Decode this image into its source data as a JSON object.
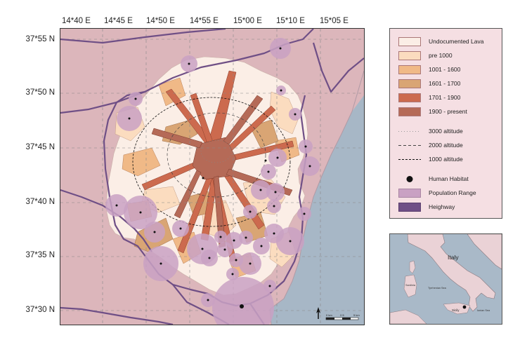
{
  "lon_labels": [
    "14*40 E",
    "14*45 E",
    "14*50 E",
    "14*55 E",
    "15*00 E",
    "15*10 E",
    "15*05 E"
  ],
  "lat_labels": [
    "37*55 N",
    "37*50 N",
    "37*45 N",
    "37*40 N",
    "37*35 N",
    "37*30 N"
  ],
  "legend": {
    "lava": [
      {
        "label": "Undocumented Lava",
        "color": "#fbeee6"
      },
      {
        "label": "pre 1000",
        "color": "#fbdcbf"
      },
      {
        "label": "1001 - 1600",
        "color": "#f0b987"
      },
      {
        "label": "1601 - 1700",
        "color": "#d9a574"
      },
      {
        "label": "1701 - 1900",
        "color": "#cc6a4e"
      },
      {
        "label": "1900 - present",
        "color": "#b56a57"
      }
    ],
    "altitude": [
      {
        "label": "3000 altitude",
        "dash": "1,3",
        "color": "#999999"
      },
      {
        "label": "2000 altitude",
        "dash": "4,3",
        "color": "#444444"
      },
      {
        "label": "1000 altitude",
        "dash": "3,2",
        "color": "#111111"
      }
    ],
    "symbols": [
      {
        "label": "Human Habitat",
        "kind": "dot"
      },
      {
        "label": "Population Range",
        "kind": "circle"
      },
      {
        "label": "Heighway",
        "kind": "road"
      }
    ]
  },
  "colors": {
    "land": "#dcb6bb",
    "sea": "#a7b7c6",
    "road": "#6f4f86",
    "population": "#c9a1c3",
    "habitat": "#111111"
  },
  "scale_bar": {
    "labels": [
      "0 km",
      "2.5",
      "5 km"
    ]
  },
  "inset": {
    "labels": {
      "italy": "Italy",
      "sardinia": "Sardinia",
      "tyrrhenian": "Tyrrhenian Sea",
      "sicily": "Sicily",
      "ionian": "Ionian Sea"
    }
  }
}
